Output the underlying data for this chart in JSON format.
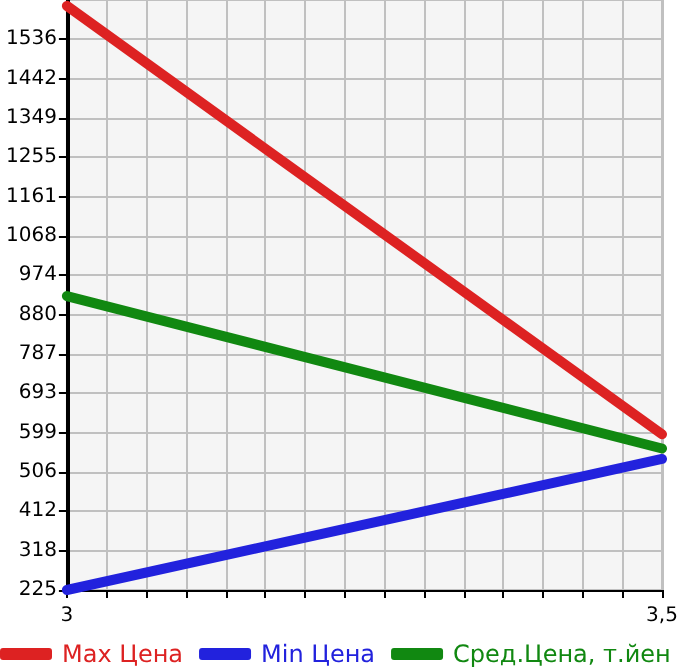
{
  "chart_data": {
    "type": "line",
    "xlim": [
      3,
      3.5
    ],
    "xticks": [
      3,
      {
        "value": 3.0333,
        "label": null
      },
      {
        "value": 3.0667,
        "label": null
      },
      {
        "value": 3.1,
        "label": null
      },
      {
        "value": 3.1333,
        "label": null
      },
      {
        "value": 3.1667,
        "label": null
      },
      {
        "value": 3.2,
        "label": null
      },
      {
        "value": 3.2333,
        "label": null
      },
      {
        "value": 3.2667,
        "label": null
      },
      {
        "value": 3.3,
        "label": null
      },
      {
        "value": 3.3333,
        "label": null
      },
      {
        "value": 3.3667,
        "label": null
      },
      {
        "value": 3.4,
        "label": null
      },
      {
        "value": 3.4333,
        "label": null
      },
      {
        "value": 3.4667,
        "label": null
      },
      {
        "value": 3.5,
        "label": "3,5"
      }
    ],
    "ylim": [
      225,
      1630
    ],
    "yticks": [
      225,
      318,
      412,
      506,
      599,
      693,
      787,
      880,
      974,
      1068,
      1161,
      1255,
      1349,
      1442,
      1536
    ],
    "x": [
      3,
      3.5
    ],
    "series": [
      {
        "name": "Max Цена",
        "color": "#dd2222",
        "values": [
          1616,
          596
        ]
      },
      {
        "name": "Min Цена",
        "color": "#2222dd",
        "values": [
          225,
          537
        ]
      },
      {
        "name": "Сред.Цена, т.йен",
        "color": "#118811",
        "values": [
          925,
          562
        ]
      }
    ],
    "grid": true,
    "legend": "bottom",
    "marker": "none",
    "line_style": "solid"
  }
}
